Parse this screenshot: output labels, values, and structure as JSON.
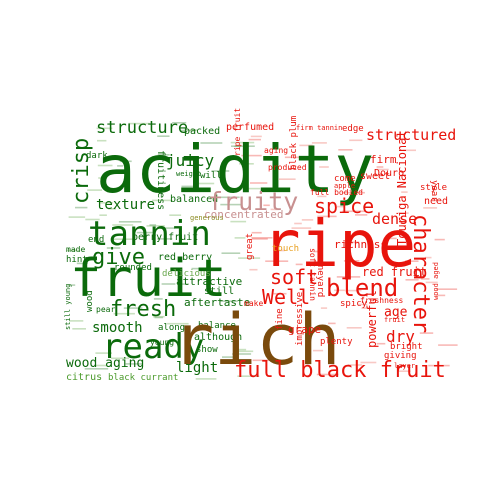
{
  "colors": {
    "background": "#ffffff",
    "green": "#0b6a0b",
    "green_light": "#4a9a2a",
    "red": "#e8140c",
    "red_soft": "#e84a3c",
    "brown": "#7a4a0c",
    "rose": "#c89090",
    "olive": "#8a8a20"
  },
  "words": {
    "acidity": "acidity",
    "ripe": "ripe",
    "rich": "rich",
    "fruit": "fruit",
    "ready": "ready",
    "tannin": "tannin",
    "full_black_fruit": "full black fruit",
    "fruity": "fruity",
    "blend": "blend",
    "character": "character",
    "structure": "structure",
    "crisp": "crisp",
    "spice": "spice",
    "soft": "soft",
    "well": "Well",
    "give": "give",
    "fresh": "fresh",
    "juicy": "juicy",
    "texture": "texture",
    "structured": "structured",
    "dense": "dense",
    "smooth": "smooth",
    "wood_aging": "wood aging",
    "light": "light",
    "concentrated": "concentrated",
    "berry_fruit": "berry fruit",
    "red_berry": "red berry",
    "red_fruit": "red fruit",
    "richness": "richness",
    "balanced": "balanced",
    "attractive": "attractive",
    "aftertaste": "aftertaste",
    "black_currant": "black currant",
    "citrus": "citrus",
    "powerful": "powerful",
    "dry": "dry",
    "age": "age",
    "grape": "grape",
    "sweet": "sweet",
    "firm": "firm",
    "touriga_nacional": "Touriga Nacional",
    "perfumed": "perfumed",
    "fruitiness": "fruitiness",
    "packed": "packed",
    "edge": "edge",
    "plenty": "plenty",
    "still": "still",
    "balance": "balance",
    "although": "although",
    "show": "show",
    "delicious": "delicious",
    "rounded": "rounded",
    "young": "young",
    "end": "end",
    "hint": "hint",
    "made": "made",
    "dark": "dark",
    "wood": "wood",
    "pear": "pear",
    "vineyard": "vineyard",
    "spicy": "spicy",
    "fine": "fine",
    "impressive": "impressive",
    "great": "great",
    "touch": "touch",
    "bright": "bright",
    "giving": "giving",
    "freshness": "freshness",
    "need": "need",
    "style": "style",
    "year": "year",
    "douro": "Douro",
    "come": "come",
    "apple": "apple",
    "full_bodied": "full bodied",
    "produced": "produced",
    "black_plum": "black plum",
    "soft_tannin": "soft tannin",
    "firm_tannin": "firm tannin",
    "ripe_fruit": "ripe fruit",
    "aging": "aging",
    "weight": "weight",
    "will": "will",
    "along": "along",
    "generous": "generous",
    "layer": "layer",
    "wood_aged": "wood aged",
    "make": "make",
    "fruit_s": "fruit",
    "still_young": "still young"
  }
}
